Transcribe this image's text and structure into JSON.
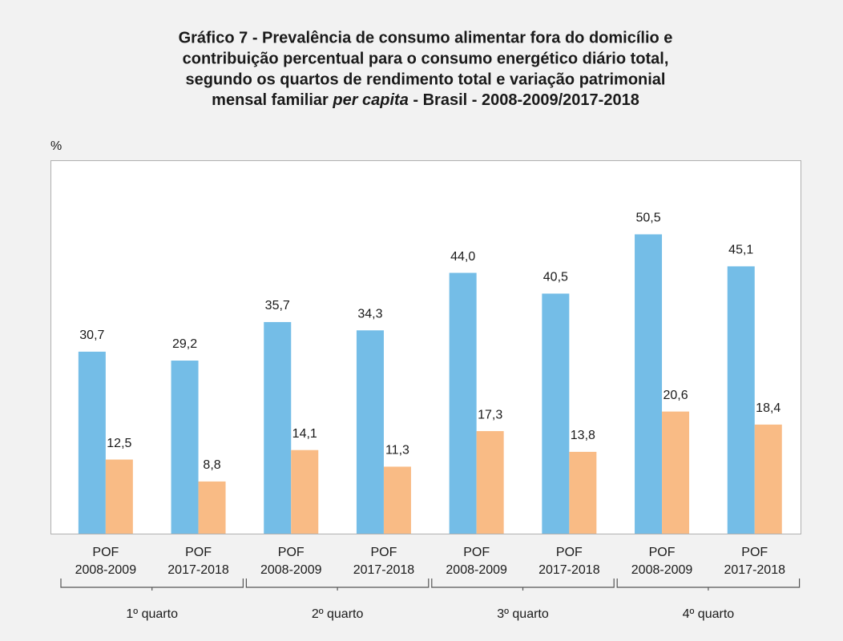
{
  "chart_data": {
    "type": "bar",
    "title": [
      "Gráfico 7 - Prevalência de consumo alimentar fora do domicílio e",
      "contribuição percentual para o consumo energético diário total,",
      "segundo os quartos de rendimento total e variação patrimonial"
    ],
    "title_last": [
      "mensal familiar ",
      "per capita",
      " - Brasil - 2008-2009/2017-2018"
    ],
    "y_label": "%",
    "categories": [
      [
        "POF",
        "2008-2009"
      ],
      [
        "POF",
        "2017-2018"
      ],
      [
        "POF",
        "2008-2009"
      ],
      [
        "POF",
        "2017-2018"
      ],
      [
        "POF",
        "2008-2009"
      ],
      [
        "POF",
        "2017-2018"
      ],
      [
        "POF",
        "2008-2009"
      ],
      [
        "POF",
        "2017-2018"
      ]
    ],
    "groups": [
      "1º quarto",
      "2º quarto",
      "3º quarto",
      "4º quarto"
    ],
    "series": [
      {
        "color": "#74bde7",
        "values": [
          30.7,
          29.2,
          35.7,
          34.3,
          44.0,
          40.5,
          50.5,
          45.1
        ],
        "value_labels": [
          "30,7",
          "29,2",
          "35,7",
          "34,3",
          "44,0",
          "40,5",
          "50,5",
          "45,1"
        ]
      },
      {
        "color": "#f9bb85",
        "values": [
          12.5,
          8.8,
          14.1,
          11.3,
          17.3,
          13.8,
          20.6,
          18.4
        ],
        "value_labels": [
          "12,5",
          "8,8",
          "14,1",
          "11,3",
          "17,3",
          "13,8",
          "20,6",
          "18,4"
        ]
      }
    ],
    "ylim": [
      0,
      63
    ],
    "grid": false
  }
}
